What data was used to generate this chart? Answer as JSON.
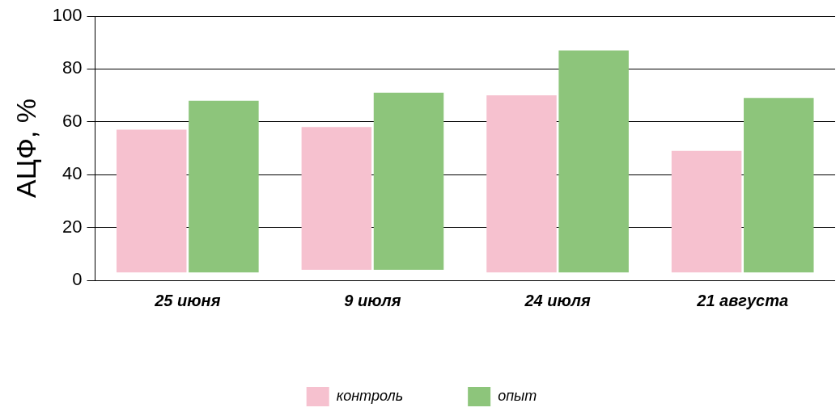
{
  "chart_data": {
    "type": "bar",
    "ylabel": "АЦФ, %",
    "categories": [
      "25 июня",
      "9 июля",
      "24 июля",
      "21 августа"
    ],
    "series": [
      {
        "name": "контроль",
        "color": "#f6c1cf",
        "base": [
          3,
          4,
          3,
          3
        ],
        "values": [
          54,
          54,
          67,
          46
        ]
      },
      {
        "name": "опыт",
        "color": "#8dc57b",
        "base": [
          3,
          4,
          3,
          3
        ],
        "values": [
          65,
          67,
          84,
          66
        ]
      }
    ],
    "ylim": [
      0,
      100
    ],
    "yticks": [
      0,
      20,
      40,
      60,
      80,
      100
    ],
    "grid": "y",
    "legend": "bottom"
  }
}
